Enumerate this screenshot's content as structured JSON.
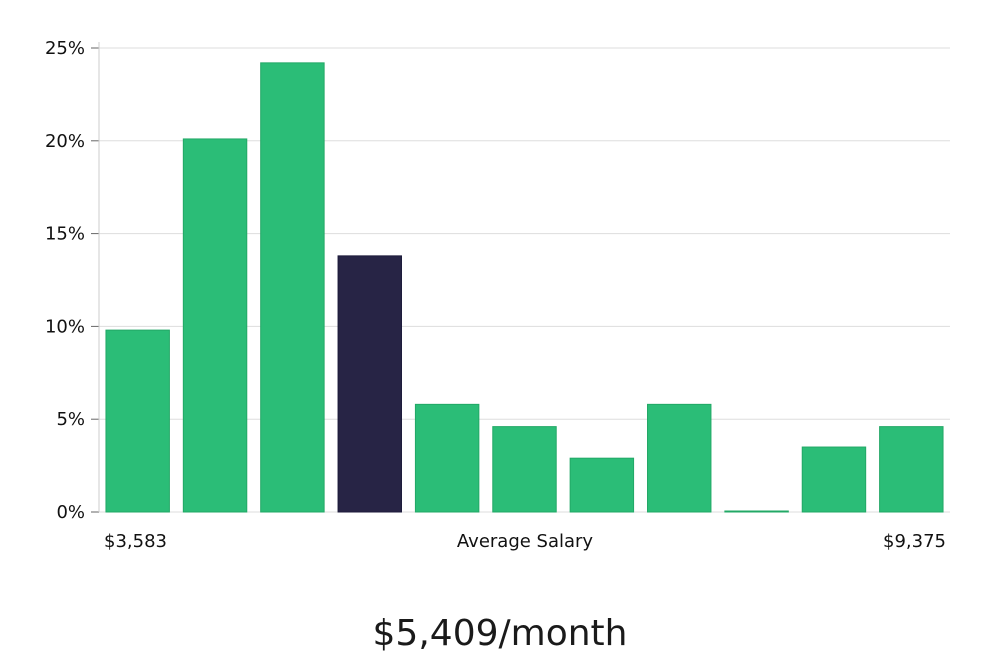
{
  "chart_data": {
    "type": "bar",
    "values": [
      9.8,
      20.1,
      24.2,
      13.8,
      5.8,
      4.6,
      2.9,
      5.8,
      0.05,
      3.5,
      4.6
    ],
    "highlight_index": 3,
    "ylim": [
      0,
      25
    ],
    "yticks": [
      0,
      5,
      10,
      15,
      20,
      25
    ],
    "ytick_labels": [
      "0%",
      "5%",
      "10%",
      "15%",
      "20%",
      "25%"
    ],
    "grid": true,
    "xlabel": "Average Salary",
    "x_min_label": "$3,583",
    "x_max_label": "$9,375",
    "colors": {
      "bar": "#2bbd77",
      "highlight": "#272445",
      "grid": "#dddddd",
      "axis": "#cccccc"
    }
  },
  "caption": "$5,409/month"
}
